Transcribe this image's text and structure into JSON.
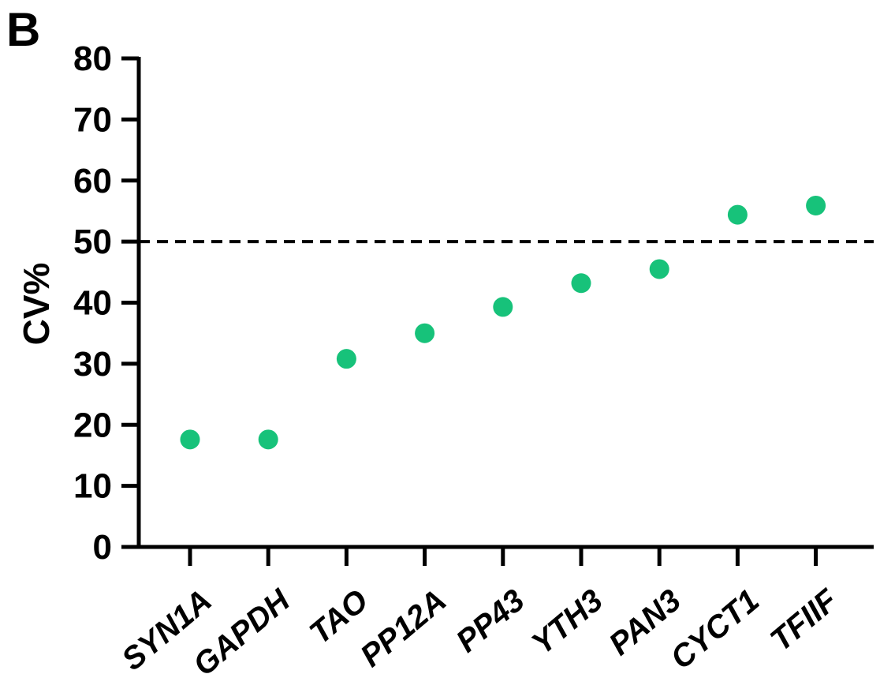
{
  "panel_label": "B",
  "chart_data": {
    "type": "scatter",
    "title": "",
    "xlabel": "",
    "ylabel": "CV%",
    "ylim": [
      0,
      80
    ],
    "yticks": [
      0,
      10,
      20,
      30,
      40,
      50,
      60,
      70,
      80
    ],
    "categories": [
      "SYN1A",
      "GAPDH",
      "TAO",
      "PP12A",
      "PP43",
      "YTH3",
      "PAN3",
      "CYCT1",
      "TFIIF"
    ],
    "values": [
      17.6,
      17.6,
      30.8,
      35.0,
      39.3,
      43.2,
      45.5,
      54.4,
      55.9
    ],
    "reference_line": {
      "y": 50,
      "style": "dashed"
    },
    "marker_color": "#17c27a",
    "axis_color": "#000000",
    "grid": false,
    "legend": "none"
  }
}
